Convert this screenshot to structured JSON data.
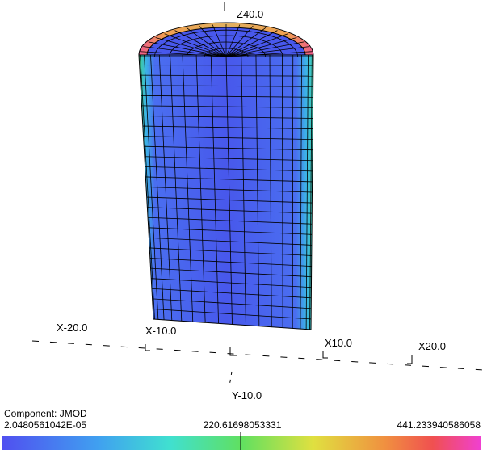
{
  "viewport": {
    "axis_labels": {
      "z_top": "Z40.0",
      "x_m20": "X-20.0",
      "x_m10": "X-10.0",
      "x_10": "X10.0",
      "x_20": "X20.0",
      "y_m10": "Y-10.0"
    }
  },
  "legend": {
    "component": "Component: JMOD",
    "min": "2.0480561042E-05",
    "mid": "220.61698053331",
    "max": "441.233940586058"
  }
}
